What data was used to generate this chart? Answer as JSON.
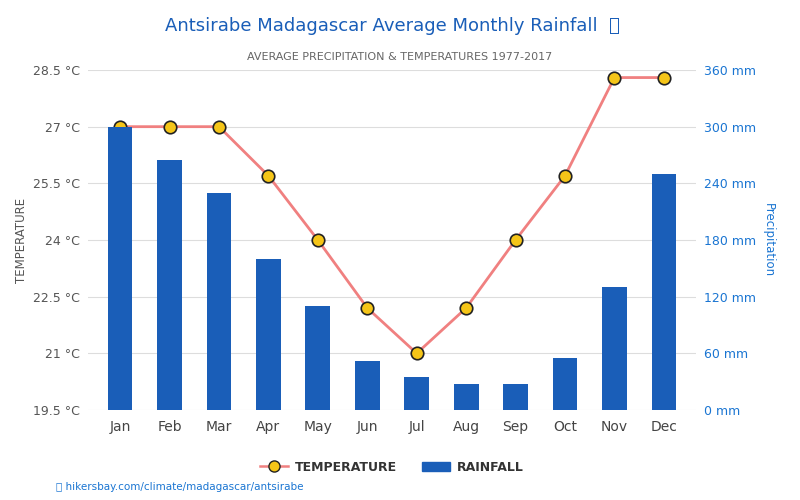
{
  "title": "Antsirabe Madagascar Average Monthly Rainfall",
  "subtitle": "AVERAGE PRECIPITATION & TEMPERATURES 1977-2017",
  "months": [
    "Jan",
    "Feb",
    "Mar",
    "Apr",
    "May",
    "Jun",
    "Jul",
    "Aug",
    "Sep",
    "Oct",
    "Nov",
    "Dec"
  ],
  "temperature": [
    27.0,
    27.0,
    27.0,
    25.7,
    24.0,
    22.2,
    21.0,
    22.2,
    24.0,
    25.7,
    28.3,
    28.3
  ],
  "rainfall": [
    300,
    265,
    230,
    160,
    110,
    52,
    35,
    28,
    28,
    55,
    130,
    250
  ],
  "bar_color": "#1a5eb8",
  "line_color": "#f08080",
  "marker_facecolor": "#f5c518",
  "marker_edgecolor": "#222222",
  "title_color": "#1a5eb8",
  "subtitle_color": "#666666",
  "left_axis_color": "#555555",
  "right_axis_color": "#1a75d2",
  "grid_color": "#dddddd",
  "temp_ylim": [
    19.5,
    28.5
  ],
  "rain_ylim": [
    0,
    360
  ],
  "temp_yticks": [
    19.5,
    21.0,
    22.5,
    24.0,
    25.5,
    27.0,
    28.5
  ],
  "rain_yticks": [
    0,
    60,
    120,
    180,
    240,
    300,
    360
  ],
  "temp_ytick_labels": [
    "19.5 °C",
    "21 °C",
    "22.5 °C",
    "24 °C",
    "25.5 °C",
    "27 °C",
    "28.5 °C"
  ],
  "rain_ytick_labels": [
    "0 mm",
    "60 mm",
    "120 mm",
    "180 mm",
    "240 mm",
    "300 mm",
    "360 mm"
  ],
  "ylabel_temp": "TEMPERATURE",
  "ylabel_rain": "Precipitation",
  "footer": "hikersbay.com/climate/madagascar/antsirabe",
  "legend_temp": "TEMPERATURE",
  "legend_rain": "RAINFALL",
  "bar_width": 0.5
}
